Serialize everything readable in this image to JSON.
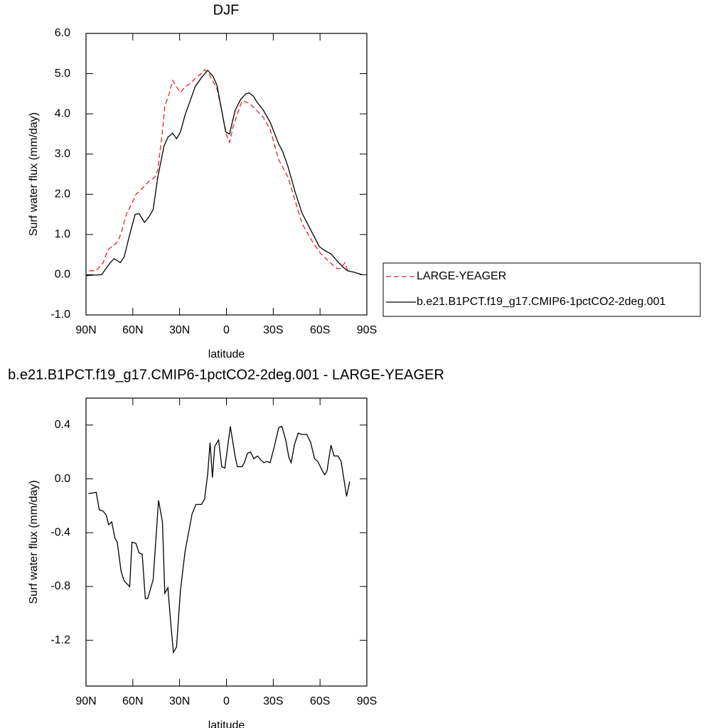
{
  "chart_data": [
    {
      "type": "line",
      "title": "DJF",
      "x_label": "latitude",
      "y_label": "Surf water flux (mm/day)",
      "xlim": [
        90,
        -90
      ],
      "xticks": [
        {
          "value": 90,
          "label": "90N"
        },
        {
          "value": 60,
          "label": "60N"
        },
        {
          "value": 30,
          "label": "30N"
        },
        0,
        {
          "value": -30,
          "label": "30S"
        },
        {
          "value": -60,
          "label": "60S"
        },
        {
          "value": -90,
          "label": "90S"
        }
      ],
      "ylim": [
        -1,
        6
      ],
      "yticks": [
        {
          "value": -1,
          "label": "-1.0"
        },
        {
          "value": 0,
          "label": "0.0"
        },
        {
          "value": 1,
          "label": "1.0"
        },
        {
          "value": 2,
          "label": "2.0"
        },
        {
          "value": 3,
          "label": "3.0"
        },
        {
          "value": 4,
          "label": "4.0"
        },
        {
          "value": 5,
          "label": "5.0"
        },
        {
          "value": 6,
          "label": "6.0"
        }
      ],
      "legend": "outside right",
      "series": [
        {
          "name": "LARGE-YEAGER",
          "color": "#e8202a",
          "dash": true,
          "x": [
            88,
            83.5,
            79,
            76,
            72,
            69.5,
            67,
            64,
            60.5,
            58,
            55,
            52.5,
            49.5,
            46,
            44,
            41,
            39.5,
            36.5,
            34.5,
            32,
            29.5,
            26.5,
            23,
            20,
            16.5,
            14,
            11,
            8.5,
            6,
            3,
            0,
            -2,
            -4,
            -7,
            -10,
            -14.5,
            -19,
            -23.5,
            -28,
            -33.5,
            -39.5,
            -44,
            -48.5,
            -55,
            -60.5,
            -66.5,
            -71,
            -73,
            -76,
            -77.5
          ],
          "values": [
            0.1,
            0.1,
            0.3,
            0.62,
            0.74,
            0.83,
            1.1,
            1.53,
            1.77,
            2.0,
            2.1,
            2.21,
            2.33,
            2.42,
            2.6,
            3.57,
            4.18,
            4.53,
            4.83,
            4.67,
            4.53,
            4.67,
            4.76,
            4.88,
            4.99,
            5.1,
            4.99,
            4.8,
            4.62,
            4.08,
            3.47,
            3.29,
            3.64,
            4.0,
            4.32,
            4.27,
            4.1,
            3.92,
            3.62,
            2.86,
            2.42,
            1.84,
            1.27,
            0.83,
            0.52,
            0.3,
            0.15,
            0.15,
            0.3,
            0.12
          ]
        },
        {
          "name": "b.e21.B1PCT.f19_g17.CMIP6-1pctCO2-2deg.001",
          "color": "#000000",
          "dash": false,
          "x": [
            90,
            80,
            74.5,
            72,
            70,
            68,
            65.5,
            62,
            58.5,
            56,
            52.5,
            49.5,
            47,
            44,
            40,
            37.5,
            34.5,
            32,
            29.5,
            26.5,
            23,
            20,
            16,
            12,
            8.5,
            6,
            3,
            0.5,
            -2,
            -5.5,
            -9,
            -12.5,
            -14.5,
            -17,
            -20,
            -23.5,
            -28,
            -33.5,
            -36,
            -39.5,
            -44,
            -48.5,
            -55,
            -59.5,
            -63,
            -67,
            -72,
            -75,
            -77.5,
            -82,
            -87
          ],
          "values": [
            -0.02,
            0.0,
            0.3,
            0.4,
            0.35,
            0.3,
            0.45,
            1.0,
            1.5,
            1.52,
            1.3,
            1.45,
            1.62,
            2.42,
            3.2,
            3.42,
            3.52,
            3.38,
            3.55,
            3.97,
            4.35,
            4.68,
            4.9,
            5.08,
            4.93,
            4.7,
            4.08,
            3.55,
            3.5,
            4.08,
            4.35,
            4.5,
            4.52,
            4.45,
            4.27,
            4.1,
            3.8,
            3.25,
            3.07,
            2.68,
            2.06,
            1.53,
            1.04,
            0.7,
            0.6,
            0.52,
            0.3,
            0.18,
            0.1,
            0.06,
            0.0
          ]
        }
      ]
    },
    {
      "type": "line",
      "title": "b.e21.B1PCT.f19_g17.CMIP6-1pctCO2-2deg.001 - LARGE-YEAGER",
      "x_label": "latitude",
      "y_label": "Surf water flux (mm/day)",
      "xlim": [
        90,
        -90
      ],
      "xticks": [
        {
          "value": 90,
          "label": "90N"
        },
        {
          "value": 60,
          "label": "60N"
        },
        {
          "value": 30,
          "label": "30N"
        },
        0,
        {
          "value": -30,
          "label": "30S"
        },
        {
          "value": -60,
          "label": "60S"
        },
        {
          "value": -90,
          "label": "90S"
        }
      ],
      "ylim": [
        -1.54,
        0.6
      ],
      "yticks": [
        -1.2,
        -0.8,
        -0.4,
        {
          "value": 0,
          "label": "0.0"
        },
        0.4
      ],
      "color": "#000000",
      "x": [
        88.5,
        83.5,
        81.5,
        79,
        77,
        75.5,
        73.5,
        71.5,
        70,
        67.5,
        65.5,
        62,
        60.5,
        58,
        56,
        54,
        52,
        50.5,
        47,
        43.5,
        41,
        39.5,
        37.5,
        36,
        34,
        32,
        29.5,
        26.5,
        22,
        19.5,
        16,
        14,
        12,
        10.5,
        9,
        7.5,
        5,
        3,
        1,
        -2.5,
        -5.5,
        -7,
        -10,
        -11.5,
        -13.5,
        -15.5,
        -17.5,
        -20,
        -22,
        -24,
        -26,
        -28,
        -30.5,
        -33.5,
        -35.5,
        -38,
        -40,
        -41.5,
        -43.5,
        -46,
        -48.5,
        -51.5,
        -54,
        -56.5,
        -58.5,
        -61,
        -63,
        -64.5,
        -67,
        -69,
        -71.5,
        -73.5,
        -77,
        -79
      ],
      "values": [
        -0.11,
        -0.1,
        -0.23,
        -0.24,
        -0.27,
        -0.34,
        -0.32,
        -0.44,
        -0.47,
        -0.69,
        -0.76,
        -0.8,
        -0.47,
        -0.48,
        -0.55,
        -0.56,
        -0.89,
        -0.89,
        -0.75,
        -0.16,
        -0.32,
        -0.85,
        -0.81,
        -1.03,
        -1.29,
        -1.25,
        -0.83,
        -0.54,
        -0.26,
        -0.19,
        -0.19,
        -0.15,
        0.04,
        0.27,
        0.01,
        0.24,
        0.29,
        0.09,
        0.08,
        0.39,
        0.17,
        0.09,
        0.09,
        0.12,
        0.19,
        0.2,
        0.15,
        0.17,
        0.14,
        0.12,
        0.13,
        0.12,
        0.23,
        0.38,
        0.39,
        0.29,
        0.16,
        0.12,
        0.25,
        0.34,
        0.33,
        0.33,
        0.27,
        0.15,
        0.13,
        0.07,
        0.03,
        0.06,
        0.25,
        0.17,
        0.17,
        0.13,
        -0.13,
        -0.02
      ]
    }
  ]
}
